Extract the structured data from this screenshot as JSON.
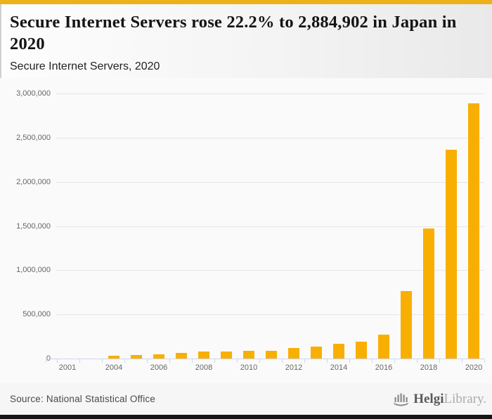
{
  "header": {
    "title": "Secure Internet Servers rose 22.2% to 2,884,902 in Japan in 2020",
    "subtitle": "Secure Internet Servers, 2020"
  },
  "chart_data": {
    "type": "bar",
    "title": "Secure Internet Servers rose 22.2% to 2,884,902 in Japan in 2020",
    "subtitle": "Secure Internet Servers, 2020",
    "xlabel": "",
    "ylabel": "",
    "ylim": [
      0,
      3000000
    ],
    "grid": true,
    "legend": "none",
    "bar_color": "#f9af02",
    "categories": [
      2001,
      2002,
      2003,
      2004,
      2005,
      2006,
      2007,
      2008,
      2009,
      2010,
      2011,
      2012,
      2013,
      2014,
      2015,
      2016,
      2017,
      2018,
      2019,
      2020
    ],
    "values": [
      0,
      0,
      0,
      30000,
      40000,
      50000,
      64000,
      77000,
      80000,
      85000,
      88000,
      120000,
      136000,
      170000,
      194000,
      271000,
      760000,
      1472000,
      2360804,
      2884902
    ],
    "x_tick_labels": [
      "2001",
      "2004",
      "2006",
      "2008",
      "2010",
      "2012",
      "2014",
      "2016",
      "2018",
      "2020"
    ],
    "y_ticks": [
      {
        "value": 0,
        "label": "0"
      },
      {
        "value": 500000,
        "label": "500,000"
      },
      {
        "value": 1000000,
        "label": "1,000,000"
      },
      {
        "value": 1500000,
        "label": "1,500,000"
      },
      {
        "value": 2000000,
        "label": "2,000,000"
      },
      {
        "value": 2500000,
        "label": "2,500,000"
      },
      {
        "value": 3000000,
        "label": "3,000,000"
      }
    ],
    "highlight_value_2020": "2,884,902",
    "growth_pct_2020": "22.2%"
  },
  "footer": {
    "source": "Source: National Statistical Office",
    "logo": {
      "brand": "Helgi",
      "suffix": "Library."
    }
  },
  "colors": {
    "accent_top_bar": "#edb21a",
    "bar": "#f9af02",
    "gridline": "#e6e6e6",
    "axis_line": "#ccd6eb",
    "axis_label": "#666666",
    "footer_strip": "#161616"
  }
}
